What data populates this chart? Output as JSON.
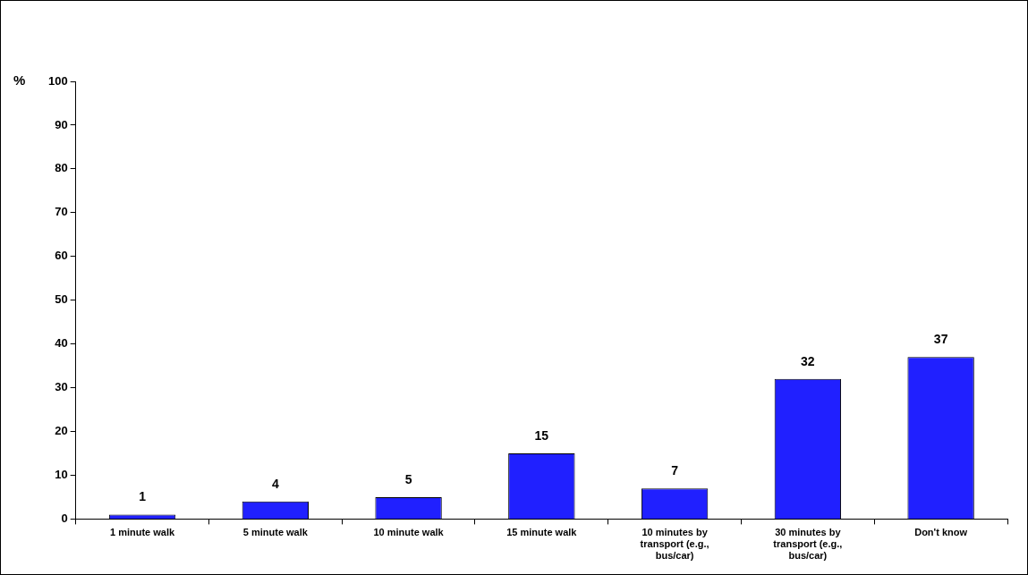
{
  "chart_data": {
    "type": "bar",
    "ylabel": "%",
    "categories": [
      "1 minute walk",
      "5 minute walk",
      "10 minute walk",
      "15 minute walk",
      "10 minutes by transport (e.g., bus/car)",
      "30 minutes by transport (e.g., bus/car)",
      "Don't know"
    ],
    "values": [
      1,
      4,
      5,
      15,
      7,
      32,
      37
    ],
    "color": "#2020ff",
    "ylim": [
      0,
      100
    ],
    "yticks": [
      0,
      10,
      20,
      30,
      40,
      50,
      60,
      70,
      80,
      90,
      100
    ],
    "grid": false,
    "legend": false,
    "data_labels": true
  }
}
